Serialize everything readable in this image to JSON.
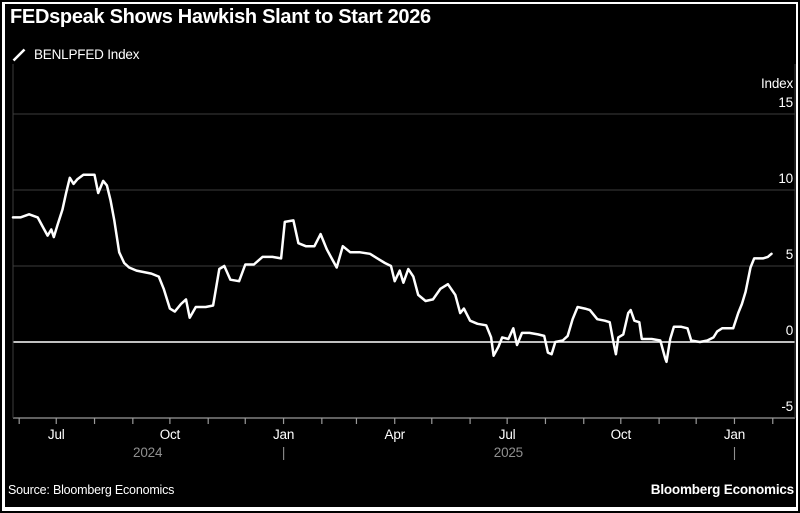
{
  "title": "FEDspeak Shows Hawkish Slant to Start 2026",
  "legend": {
    "marker": "line-sample",
    "label": "BENLPFED Index"
  },
  "footer": {
    "source": "Source: Bloomberg Economics",
    "brand": "Bloomberg Economics"
  },
  "colors": {
    "background": "#000000",
    "page": "#ffffff",
    "text": "#ffffff",
    "muted_text": "#8f8f8f",
    "gridline": "#3d3d3d",
    "axis": "#9a9a9a",
    "zero_line": "#ffffff",
    "series_line": "#ffffff"
  },
  "chart_data": {
    "type": "line",
    "title": "FEDspeak Shows Hawkish Slant to Start 2026",
    "legend_position": "top-left",
    "grid": true,
    "y_axis": {
      "label": "Index",
      "side": "right",
      "ticks": [
        15,
        10,
        5,
        0,
        -5
      ],
      "range": [
        -5,
        15
      ],
      "zero_line": true
    },
    "x_axis": {
      "start": "2024-05-27",
      "end": "2026-02-19",
      "minor_ticks": "monthly",
      "labels": [
        {
          "text": "Jul",
          "date": "2024-07-01"
        },
        {
          "text": "Oct",
          "date": "2024-10-01"
        },
        {
          "text": "Jan",
          "date": "2025-01-01"
        },
        {
          "text": "Apr",
          "date": "2025-04-01"
        },
        {
          "text": "Jul",
          "date": "2025-07-01"
        },
        {
          "text": "Oct",
          "date": "2025-10-01"
        },
        {
          "text": "Jan",
          "date": "2026-01-01"
        }
      ],
      "years": [
        {
          "text": "2024",
          "center": "2024-09-13"
        },
        {
          "text": "2025",
          "center": "2025-07-02"
        }
      ],
      "year_separators": [
        "2025-01-01",
        "2026-01-01"
      ]
    },
    "series": [
      {
        "name": "BENLPFED Index",
        "color": "#ffffff",
        "points": [
          [
            "2024-05-27",
            8.2
          ],
          [
            "2024-06-02",
            8.2
          ],
          [
            "2024-06-09",
            8.4
          ],
          [
            "2024-06-16",
            8.2
          ],
          [
            "2024-06-20",
            7.6
          ],
          [
            "2024-06-24",
            7.0
          ],
          [
            "2024-06-27",
            7.4
          ],
          [
            "2024-06-29",
            6.9
          ],
          [
            "2024-07-02",
            7.7
          ],
          [
            "2024-07-06",
            8.7
          ],
          [
            "2024-07-09",
            9.8
          ],
          [
            "2024-07-12",
            10.8
          ],
          [
            "2024-07-15",
            10.4
          ],
          [
            "2024-07-18",
            10.7
          ],
          [
            "2024-07-23",
            11.0
          ],
          [
            "2024-08-01",
            11.0
          ],
          [
            "2024-08-04",
            9.8
          ],
          [
            "2024-08-08",
            10.6
          ],
          [
            "2024-08-11",
            10.3
          ],
          [
            "2024-08-14",
            9.3
          ],
          [
            "2024-08-17",
            8.0
          ],
          [
            "2024-08-21",
            5.9
          ],
          [
            "2024-08-25",
            5.2
          ],
          [
            "2024-08-29",
            4.9
          ],
          [
            "2024-09-04",
            4.7
          ],
          [
            "2024-09-10",
            4.6
          ],
          [
            "2024-09-16",
            4.5
          ],
          [
            "2024-09-22",
            4.3
          ],
          [
            "2024-09-26",
            3.5
          ],
          [
            "2024-10-01",
            2.2
          ],
          [
            "2024-10-05",
            2.0
          ],
          [
            "2024-10-10",
            2.5
          ],
          [
            "2024-10-14",
            2.8
          ],
          [
            "2024-10-17",
            1.6
          ],
          [
            "2024-10-22",
            2.3
          ],
          [
            "2024-10-30",
            2.3
          ],
          [
            "2024-11-05",
            2.4
          ],
          [
            "2024-11-10",
            4.8
          ],
          [
            "2024-11-14",
            5.0
          ],
          [
            "2024-11-19",
            4.1
          ],
          [
            "2024-11-26",
            4.0
          ],
          [
            "2024-12-01",
            5.1
          ],
          [
            "2024-12-08",
            5.1
          ],
          [
            "2024-12-15",
            5.6
          ],
          [
            "2024-12-23",
            5.6
          ],
          [
            "2024-12-30",
            5.5
          ],
          [
            "2025-01-02",
            7.9
          ],
          [
            "2025-01-09",
            8.0
          ],
          [
            "2025-01-13",
            6.5
          ],
          [
            "2025-01-19",
            6.3
          ],
          [
            "2025-01-26",
            6.3
          ],
          [
            "2025-01-31",
            7.1
          ],
          [
            "2025-02-05",
            6.1
          ],
          [
            "2025-02-09",
            5.5
          ],
          [
            "2025-02-13",
            4.9
          ],
          [
            "2025-02-18",
            6.3
          ],
          [
            "2025-02-24",
            5.9
          ],
          [
            "2025-03-04",
            5.9
          ],
          [
            "2025-03-12",
            5.8
          ],
          [
            "2025-03-18",
            5.5
          ],
          [
            "2025-03-24",
            5.2
          ],
          [
            "2025-03-29",
            5.0
          ],
          [
            "2025-04-01",
            4.0
          ],
          [
            "2025-04-05",
            4.7
          ],
          [
            "2025-04-08",
            3.9
          ],
          [
            "2025-04-12",
            4.8
          ],
          [
            "2025-04-16",
            4.3
          ],
          [
            "2025-04-20",
            3.1
          ],
          [
            "2025-04-26",
            2.7
          ],
          [
            "2025-05-02",
            2.8
          ],
          [
            "2025-05-08",
            3.5
          ],
          [
            "2025-05-14",
            3.8
          ],
          [
            "2025-05-20",
            3.1
          ],
          [
            "2025-05-24",
            1.9
          ],
          [
            "2025-05-27",
            2.2
          ],
          [
            "2025-06-01",
            1.4
          ],
          [
            "2025-06-07",
            1.2
          ],
          [
            "2025-06-14",
            1.1
          ],
          [
            "2025-06-18",
            0.3
          ],
          [
            "2025-06-20",
            -0.9
          ],
          [
            "2025-06-24",
            -0.3
          ],
          [
            "2025-06-27",
            0.3
          ],
          [
            "2025-07-02",
            0.2
          ],
          [
            "2025-07-06",
            0.9
          ],
          [
            "2025-07-09",
            -0.2
          ],
          [
            "2025-07-13",
            0.6
          ],
          [
            "2025-07-19",
            0.6
          ],
          [
            "2025-07-26",
            0.5
          ],
          [
            "2025-07-31",
            0.4
          ],
          [
            "2025-08-03",
            -0.7
          ],
          [
            "2025-08-06",
            -0.8
          ],
          [
            "2025-08-09",
            0.0
          ],
          [
            "2025-08-15",
            0.1
          ],
          [
            "2025-08-19",
            0.4
          ],
          [
            "2025-08-23",
            1.5
          ],
          [
            "2025-08-27",
            2.3
          ],
          [
            "2025-09-02",
            2.2
          ],
          [
            "2025-09-06",
            2.1
          ],
          [
            "2025-09-12",
            1.5
          ],
          [
            "2025-09-18",
            1.4
          ],
          [
            "2025-09-22",
            1.3
          ],
          [
            "2025-09-25",
            0.0
          ],
          [
            "2025-09-27",
            -0.8
          ],
          [
            "2025-09-29",
            0.3
          ],
          [
            "2025-10-03",
            0.5
          ],
          [
            "2025-10-07",
            1.9
          ],
          [
            "2025-10-09",
            2.1
          ],
          [
            "2025-10-12",
            1.4
          ],
          [
            "2025-10-16",
            1.3
          ],
          [
            "2025-10-18",
            0.2
          ],
          [
            "2025-10-26",
            0.2
          ],
          [
            "2025-11-02",
            0.1
          ],
          [
            "2025-11-06",
            -1.1
          ],
          [
            "2025-11-07",
            -1.3
          ],
          [
            "2025-11-10",
            0.2
          ],
          [
            "2025-11-13",
            1.0
          ],
          [
            "2025-11-19",
            1.0
          ],
          [
            "2025-11-24",
            0.9
          ],
          [
            "2025-11-27",
            0.1
          ],
          [
            "2025-12-04",
            0.0
          ],
          [
            "2025-12-10",
            0.1
          ],
          [
            "2025-12-15",
            0.3
          ],
          [
            "2025-12-18",
            0.7
          ],
          [
            "2025-12-22",
            0.9
          ],
          [
            "2025-12-31",
            0.9
          ],
          [
            "2026-01-04",
            1.9
          ],
          [
            "2026-01-07",
            2.5
          ],
          [
            "2026-01-10",
            3.3
          ],
          [
            "2026-01-14",
            4.9
          ],
          [
            "2026-01-17",
            5.5
          ],
          [
            "2026-01-24",
            5.5
          ],
          [
            "2026-01-28",
            5.6
          ],
          [
            "2026-01-31",
            5.8
          ]
        ]
      }
    ]
  }
}
